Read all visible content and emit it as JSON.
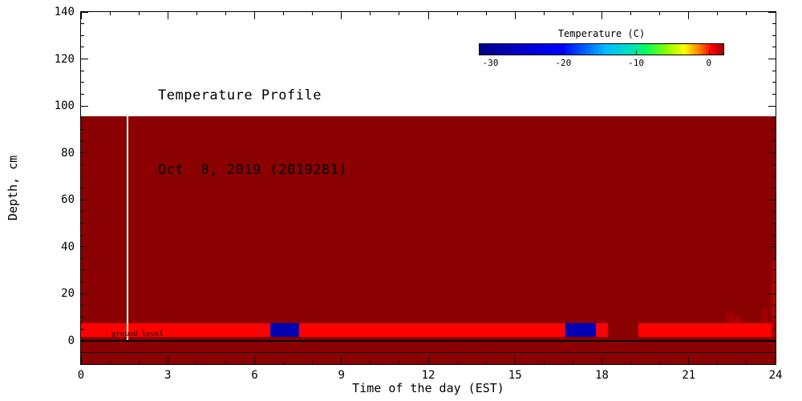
{
  "chart_data": {
    "type": "heatmap",
    "title": "Temperature Profile",
    "subtitle": "Oct  8, 2019 (2019281)",
    "xlabel": "Time of the day (EST)",
    "ylabel": "Depth, cm",
    "xlim": [
      0,
      24
    ],
    "ylim": [
      -10,
      140
    ],
    "x_major_ticks": [
      0,
      3,
      6,
      9,
      12,
      15,
      18,
      21,
      24
    ],
    "x_minor_step": 1,
    "y_major_ticks": [
      0,
      20,
      40,
      60,
      80,
      100,
      120,
      140
    ],
    "y_minor_step": 5,
    "grid": false,
    "background_color": "#ffffff",
    "body_color": "#8b0000",
    "warm_band_color": "#ff0000",
    "cold_band_color": "#0000b4",
    "colorbar": {
      "label": "Temperature (C)",
      "ticks": [
        -30,
        -20,
        -10,
        0
      ],
      "range": [
        -31.5,
        2
      ],
      "stops": [
        {
          "pos": 0.0,
          "color": "#00008b"
        },
        {
          "pos": 0.18,
          "color": "#0000cd"
        },
        {
          "pos": 0.34,
          "color": "#0000ff"
        },
        {
          "pos": 0.52,
          "color": "#00bfff"
        },
        {
          "pos": 0.62,
          "color": "#00e0c0"
        },
        {
          "pos": 0.68,
          "color": "#00ff60"
        },
        {
          "pos": 0.76,
          "color": "#80ff00"
        },
        {
          "pos": 0.84,
          "color": "#ffff00"
        },
        {
          "pos": 0.9,
          "color": "#ff8000"
        },
        {
          "pos": 0.95,
          "color": "#ff0000"
        },
        {
          "pos": 1.0,
          "color": "#990000"
        }
      ]
    },
    "regions": [
      {
        "name": "soil-body-region",
        "x0": 0,
        "x1": 24,
        "d_top": 95.5,
        "d_bot": -10,
        "color": "#8b0000"
      },
      {
        "name": "surface-warm-band",
        "x0": 0,
        "x1": 6.55,
        "d_top": 7.5,
        "d_bot": 1.5,
        "color": "#ff0000"
      },
      {
        "name": "surface-warm-band",
        "x0": 7.55,
        "x1": 18.2,
        "d_top": 7.5,
        "d_bot": 1.5,
        "color": "#ff0000"
      },
      {
        "name": "surface-warm-band",
        "x0": 19.25,
        "x1": 24,
        "d_top": 7.5,
        "d_bot": 1.5,
        "color": "#ff0000"
      },
      {
        "name": "surface-cold-segment",
        "x0": 6.55,
        "x1": 7.55,
        "d_top": 7.5,
        "d_bot": 1.5,
        "color": "#0000b4"
      },
      {
        "name": "surface-cold-segment",
        "x0": 16.75,
        "x1": 17.8,
        "d_top": 7.5,
        "d_bot": 1.5,
        "color": "#0000b4"
      },
      {
        "name": "right-edge-warm-streak",
        "x0": 23.87,
        "x1": 24,
        "d_top": 34,
        "d_bot": 1.5,
        "color": "#b40000"
      },
      {
        "name": "right-edge-warm-speckle",
        "x0": 22.3,
        "x1": 22.55,
        "d_top": 12,
        "d_bot": 7.5,
        "color": "#a50000"
      },
      {
        "name": "right-edge-warm-speckle",
        "x0": 22.6,
        "x1": 22.8,
        "d_top": 10,
        "d_bot": 7.5,
        "color": "#a50000"
      },
      {
        "name": "right-edge-warm-speckle",
        "x0": 23.55,
        "x1": 23.72,
        "d_top": 14,
        "d_bot": 7.5,
        "color": "#a50000"
      }
    ],
    "lines": [
      {
        "name": "marker-line-vertical",
        "orient": "v",
        "x": 1.62,
        "d_top": 95.5,
        "d_bot": 0,
        "width": 2,
        "color": "#ffffff"
      },
      {
        "name": "ground-level-line",
        "orient": "h",
        "depth": 0,
        "x0": 0,
        "x1": 24,
        "width": 2,
        "color": "#000000"
      },
      {
        "name": "subsurface-line",
        "orient": "h",
        "depth": -5,
        "x0": 0,
        "x1": 24,
        "width": 1,
        "color": "#000000"
      }
    ],
    "annotations": [
      {
        "name": "ground-level-label",
        "text": "ground level",
        "x": 1.05,
        "depth": 4.4,
        "color": "#000000"
      }
    ]
  }
}
